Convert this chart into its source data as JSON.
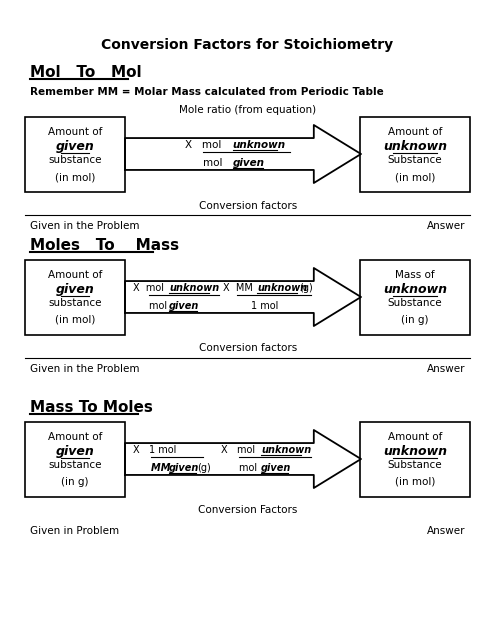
{
  "title": "Conversion Factors for Stoichiometry",
  "section1_heading": "Mol   To   Mol",
  "section1_note": "Remember MM = Molar Mass calculated from Periodic Table",
  "section1_above_arrow": "Mole ratio (from equation)",
  "section1_below_arrow": "Conversion factors",
  "section1_footer_left": "Given in the Problem",
  "section1_footer_right": "Answer",
  "section2_heading": "Moles   To    Mass",
  "section2_below_arrow": "Conversion factors",
  "section2_footer_left": "Given in the Problem",
  "section2_footer_right": "Answer",
  "section3_heading": "Mass To Moles",
  "section3_below_arrow": "Conversion Factors",
  "section3_footer_left": "Given in Problem",
  "section3_footer_right": "Answer"
}
